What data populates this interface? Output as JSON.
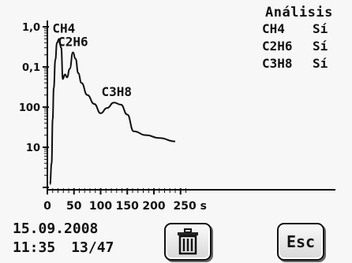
{
  "chart_data": {
    "type": "line",
    "yscale": "log",
    "ytick_labels": [
      "1,0",
      "0,1",
      "100",
      "10"
    ],
    "xticks": [
      0,
      50,
      100,
      150,
      200,
      250
    ],
    "xtick_labels": [
      "0",
      "50",
      "100",
      "150",
      "200",
      "250 s"
    ],
    "xlim": [
      0,
      260
    ],
    "series": [
      {
        "x": [
          5,
          8,
          10,
          12,
          15,
          18,
          22,
          26,
          29,
          33,
          37,
          42,
          48,
          53,
          58,
          64,
          75,
          88,
          100,
          112,
          125,
          138,
          150,
          162,
          185,
          210,
          240
        ],
        "y": [
          1.2,
          4,
          50,
          300,
          1500,
          4000,
          5000,
          3000,
          500,
          650,
          550,
          900,
          2300,
          1600,
          700,
          400,
          200,
          120,
          70,
          95,
          130,
          115,
          65,
          25,
          20,
          17,
          14
        ]
      }
    ],
    "peak_labels": [
      {
        "text": "CH4",
        "x": 22,
        "y": 5000
      },
      {
        "text": "C2H6",
        "x": 48,
        "y": 2300
      },
      {
        "text": "C3H8",
        "x": 130,
        "y": 130
      }
    ]
  },
  "analysis": {
    "title": "Análisis",
    "rows": [
      {
        "gas": "CH4",
        "value": "Sí"
      },
      {
        "gas": "C2H6",
        "value": "Sí"
      },
      {
        "gas": "C3H8",
        "value": "Sí"
      }
    ]
  },
  "footer": {
    "date": "15.09.2008",
    "time": "11:35",
    "counter": "13/47"
  },
  "buttons": {
    "trash_icon": "trash-icon",
    "esc_label": "Esc"
  }
}
